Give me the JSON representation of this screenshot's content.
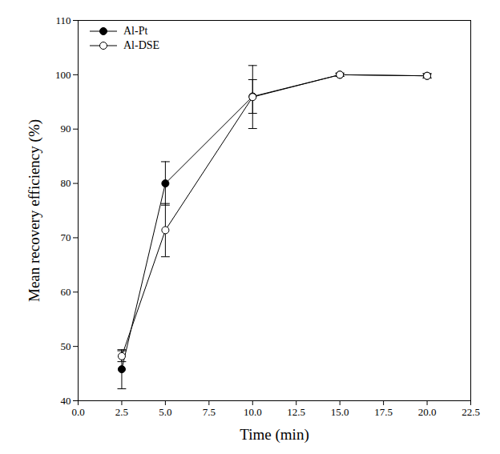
{
  "chart_data": {
    "type": "line",
    "x_label": "Time (min)",
    "y_label": "Mean recovery efficiency (%)",
    "x": [
      2.5,
      5,
      10,
      15,
      20
    ],
    "series": [
      {
        "name": "Al-Pt",
        "color": "#000000",
        "marker": "filled_circle",
        "values": [
          45.8,
          80.0,
          96.0,
          100.0,
          99.8
        ],
        "errors": [
          3.6,
          4.0,
          3.1,
          0.3,
          0.4
        ]
      },
      {
        "name": "Al-DSE",
        "color": "#000000",
        "marker": "open_circle",
        "values": [
          48.2,
          71.4,
          95.9,
          100.0,
          99.8
        ],
        "errors": [
          1.0,
          4.9,
          5.8,
          0.3,
          0.4
        ]
      }
    ],
    "xlim": [
      0,
      22.5
    ],
    "xticks": [
      {
        "value": 0,
        "label": "0.0"
      },
      2.5,
      {
        "value": 5,
        "label": "5.0"
      },
      7.5,
      {
        "value": 10,
        "label": "10.0"
      },
      12.5,
      {
        "value": 15,
        "label": "15.0"
      },
      17.5,
      {
        "value": 20,
        "label": "20.0"
      },
      22.5
    ],
    "ylim": [
      40,
      110
    ],
    "yticks": [
      40,
      50,
      60,
      70,
      80,
      90,
      100,
      110
    ],
    "grid": false,
    "legend": "upper left"
  }
}
